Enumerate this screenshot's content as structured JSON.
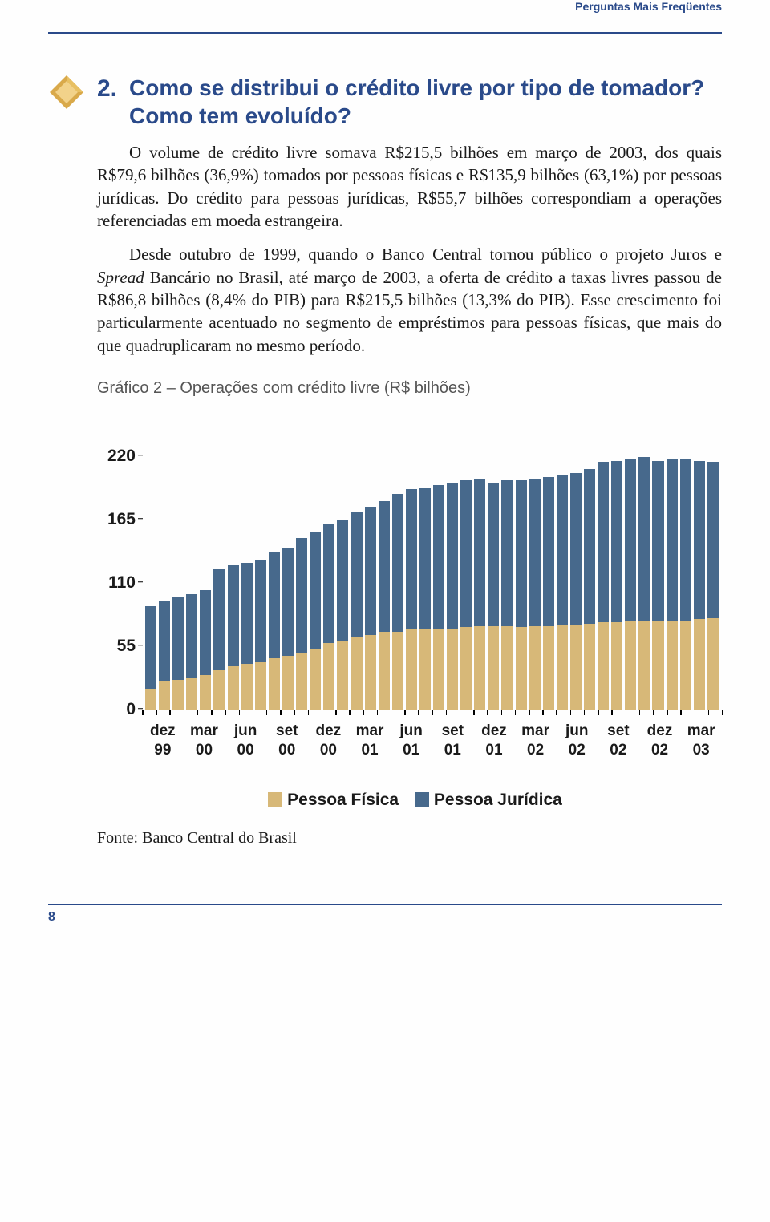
{
  "header": {
    "title": "Perguntas Mais Freqüentes"
  },
  "question": {
    "number": "2.",
    "title": "Como se distribui o crédito livre por tipo de tomador? Como tem evoluído?"
  },
  "paragraphs": {
    "p1": "O volume de crédito livre somava R$215,5 bilhões em março de 2003, dos quais R$79,6 bilhões (36,9%) tomados por pessoas físicas e R$135,9 bilhões (63,1%) por pessoas jurídicas. Do crédito para pessoas jurídicas, R$55,7 bilhões correspondiam a operações referenciadas em moeda estrangeira.",
    "p2a": "Desde outubro de 1999, quando o Banco Central tornou público o projeto Juros e ",
    "p2_italic": "Spread",
    "p2b": " Bancário no Brasil, até março de 2003, a oferta de crédito a taxas livres passou de R$86,8 bilhões (8,4% do PIB) para R$215,5 bilhões (13,3% do PIB). Esse crescimento foi particularmente acentuado no segmento de empréstimos para pessoas físicas, que mais do que quadruplicaram no mesmo período."
  },
  "chart": {
    "caption": "Gráfico 2 – Operações com crédito livre (R$ bilhões)",
    "type": "stacked-bar",
    "ylim": [
      0,
      237
    ],
    "yticks": [
      0,
      55,
      110,
      165,
      220
    ],
    "colors": {
      "pessoa_fisica": "#d7b878",
      "pessoa_juridica": "#47698c",
      "axis": "#000000",
      "background": "#ffffff"
    },
    "x_major_labels": [
      "dez 99",
      "mar 00",
      "jun 00",
      "set 00",
      "dez 00",
      "mar 01",
      "jun 01",
      "set 01",
      "dez 01",
      "mar 02",
      "jun 02",
      "set 02",
      "dez 02",
      "mar 03"
    ],
    "series": {
      "pessoa_fisica": [
        18,
        25,
        26,
        28,
        30,
        35,
        38,
        40,
        42,
        45,
        47,
        50,
        53,
        58,
        60,
        63,
        65,
        68,
        68,
        70,
        71,
        71,
        71,
        72,
        73,
        73,
        73,
        72,
        73,
        73,
        74,
        74,
        75,
        76,
        76,
        77,
        77,
        77,
        78,
        78,
        79,
        80
      ],
      "pessoa_juridica": [
        72,
        70,
        72,
        73,
        74,
        88,
        88,
        88,
        88,
        92,
        94,
        100,
        102,
        104,
        106,
        110,
        112,
        114,
        120,
        122,
        123,
        125,
        127,
        128,
        128,
        125,
        127,
        128,
        128,
        130,
        131,
        132,
        135,
        140,
        141,
        142,
        143,
        140,
        140,
        140,
        138,
        136
      ]
    },
    "x_label_fontsize": 19,
    "y_label_fontsize": 21,
    "legend": {
      "items": [
        {
          "label": "Pessoa Física",
          "color": "#d7b878"
        },
        {
          "label": "Pessoa Jurídica",
          "color": "#47698c"
        }
      ]
    },
    "source": "Fonte: Banco Central do Brasil"
  },
  "footer": {
    "page": "8"
  },
  "icon": {
    "diamond_outer": "#d9a94a",
    "diamond_inner": "#f2d28a"
  }
}
